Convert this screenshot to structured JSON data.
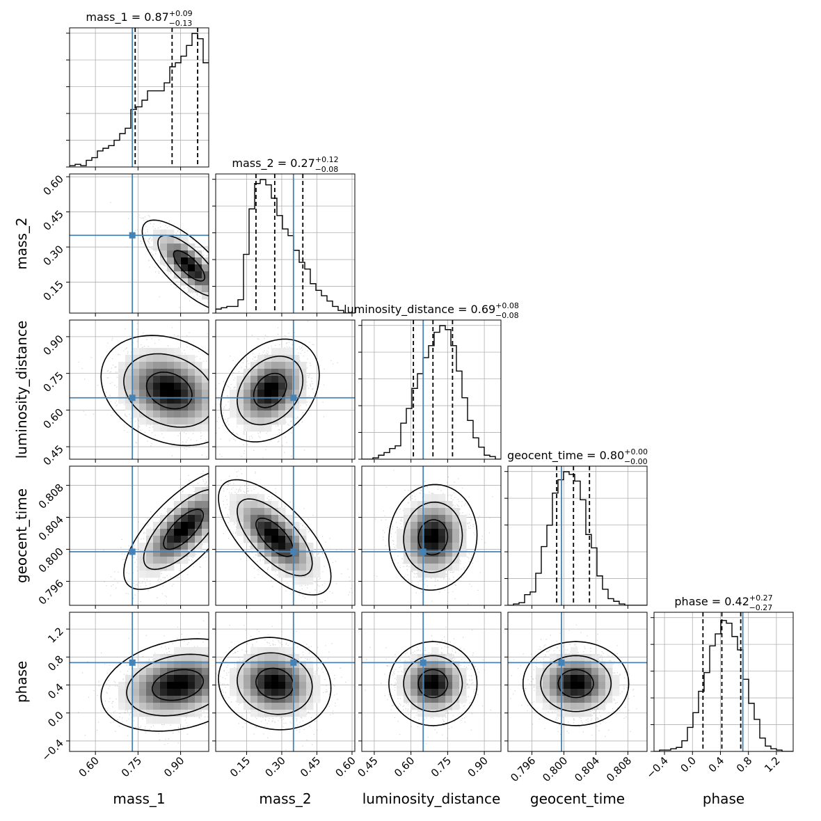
{
  "chart_data": {
    "type": "corner",
    "parameters": [
      "mass_1",
      "mass_2",
      "luminosity_distance",
      "geocent_time",
      "phase"
    ],
    "axis_labels": [
      "mass_1",
      "mass_2",
      "luminosity_distance",
      "geocent_time",
      "phase"
    ],
    "ranges": [
      [
        0.509,
        0.999
      ],
      [
        0.018,
        0.612
      ],
      [
        0.399,
        0.968
      ],
      [
        0.793,
        0.8104
      ],
      [
        -0.55,
        1.44
      ]
    ],
    "ticks": [
      {
        "values": [
          0.6,
          0.75,
          0.9
        ],
        "labels": [
          "0.60",
          "0.75",
          "0.90"
        ]
      },
      {
        "values": [
          0.15,
          0.3,
          0.45,
          0.6
        ],
        "labels": [
          "0.15",
          "0.30",
          "0.45",
          "0.60"
        ]
      },
      {
        "values": [
          0.45,
          0.6,
          0.75,
          0.9
        ],
        "labels": [
          "0.45",
          "0.60",
          "0.75",
          "0.90"
        ]
      },
      {
        "values": [
          0.796,
          0.8,
          0.804,
          0.808
        ],
        "labels": [
          "0.796",
          "0.800",
          "0.804",
          "0.808"
        ]
      },
      {
        "values": [
          -0.4,
          0.0,
          0.4,
          0.8,
          1.2
        ],
        "labels": [
          "−0.4",
          "0.0",
          "0.4",
          "0.8",
          "1.2"
        ]
      }
    ],
    "truths": [
      0.73,
      0.35,
      0.65,
      0.7997,
      0.72
    ],
    "truth_color": "#4682b4",
    "quantiles": [
      [
        0.74,
        0.87,
        0.96
      ],
      [
        0.19,
        0.27,
        0.39
      ],
      [
        0.61,
        0.69,
        0.77
      ],
      [
        0.7991,
        0.8012,
        0.8032
      ],
      [
        0.15,
        0.42,
        0.69
      ]
    ],
    "titles": [
      {
        "label": "mass_1",
        "value": "0.87",
        "plus": "+0.09",
        "minus": "−0.13"
      },
      {
        "label": "mass_2",
        "value": "0.27",
        "plus": "+0.12",
        "minus": "−0.08"
      },
      {
        "label": "luminosity_distance",
        "value": "0.69",
        "plus": "+0.08",
        "minus": "−0.08"
      },
      {
        "label": "geocent_time",
        "value": "0.80",
        "plus": "+0.00",
        "minus": "−0.00"
      },
      {
        "label": "phase",
        "value": "0.42",
        "plus": "+0.27",
        "minus": "−0.27"
      }
    ],
    "histograms": [
      [
        0.01,
        0.02,
        0.01,
        0.05,
        0.07,
        0.12,
        0.14,
        0.16,
        0.2,
        0.25,
        0.29,
        0.43,
        0.45,
        0.5,
        0.57,
        0.57,
        0.57,
        0.63,
        0.75,
        0.78,
        0.83,
        0.91,
        1.0,
        0.96,
        0.78
      ],
      [
        0.03,
        0.04,
        0.05,
        0.05,
        0.1,
        0.44,
        0.78,
        0.97,
        1.0,
        0.96,
        0.86,
        0.73,
        0.63,
        0.58,
        0.47,
        0.38,
        0.33,
        0.22,
        0.17,
        0.13,
        0.09,
        0.05,
        0.02,
        0.0,
        0.0
      ],
      [
        0.0,
        0.0,
        0.01,
        0.03,
        0.05,
        0.08,
        0.1,
        0.27,
        0.38,
        0.53,
        0.64,
        0.76,
        0.85,
        0.95,
        1.0,
        0.97,
        0.85,
        0.66,
        0.46,
        0.29,
        0.16,
        0.09,
        0.03,
        0.02,
        0.0
      ],
      [
        0.0,
        0.01,
        0.02,
        0.08,
        0.1,
        0.24,
        0.44,
        0.6,
        0.84,
        0.94,
        1.0,
        0.98,
        0.93,
        0.79,
        0.53,
        0.43,
        0.22,
        0.12,
        0.05,
        0.03,
        0.01,
        0.0,
        0.0,
        0.0,
        0.0
      ],
      [
        0.0,
        0.01,
        0.01,
        0.02,
        0.03,
        0.08,
        0.18,
        0.29,
        0.45,
        0.59,
        0.79,
        0.88,
        0.98,
        0.96,
        0.86,
        0.76,
        0.54,
        0.36,
        0.24,
        0.1,
        0.04,
        0.02,
        0.01,
        0.0,
        0.0
      ]
    ],
    "pair_densities": [
      {
        "row": 1,
        "col": 0,
        "mean": [
          0.93,
          0.22
        ],
        "sd": [
          0.055,
          0.065
        ],
        "corr": -0.75
      },
      {
        "row": 2,
        "col": 0,
        "mean": [
          0.86,
          0.68
        ],
        "sd": [
          0.08,
          0.075
        ],
        "corr": -0.25
      },
      {
        "row": 2,
        "col": 1,
        "mean": [
          0.25,
          0.68
        ],
        "sd": [
          0.07,
          0.07
        ],
        "corr": 0.3
      },
      {
        "row": 3,
        "col": 0,
        "mean": [
          0.91,
          0.8025
        ],
        "sd": [
          0.07,
          0.0025
        ],
        "corr": 0.72
      },
      {
        "row": 3,
        "col": 1,
        "mean": [
          0.27,
          0.8015
        ],
        "sd": [
          0.08,
          0.0024
        ],
        "corr": -0.68
      },
      {
        "row": 3,
        "col": 2,
        "mean": [
          0.69,
          0.8015
        ],
        "sd": [
          0.06,
          0.0022
        ],
        "corr": 0.05
      },
      {
        "row": 4,
        "col": 0,
        "mean": [
          0.89,
          0.4
        ],
        "sd": [
          0.09,
          0.22
        ],
        "corr": 0.25
      },
      {
        "row": 4,
        "col": 1,
        "mean": [
          0.27,
          0.42
        ],
        "sd": [
          0.08,
          0.22
        ],
        "corr": -0.1
      },
      {
        "row": 4,
        "col": 2,
        "mean": [
          0.69,
          0.42
        ],
        "sd": [
          0.06,
          0.2
        ],
        "corr": 0.0
      },
      {
        "row": 4,
        "col": 3,
        "mean": [
          0.8015,
          0.42
        ],
        "sd": [
          0.0022,
          0.2
        ],
        "corr": 0.0
      }
    ],
    "contour_levels": [
      0.393,
      0.865,
      0.989
    ],
    "grid": true
  }
}
